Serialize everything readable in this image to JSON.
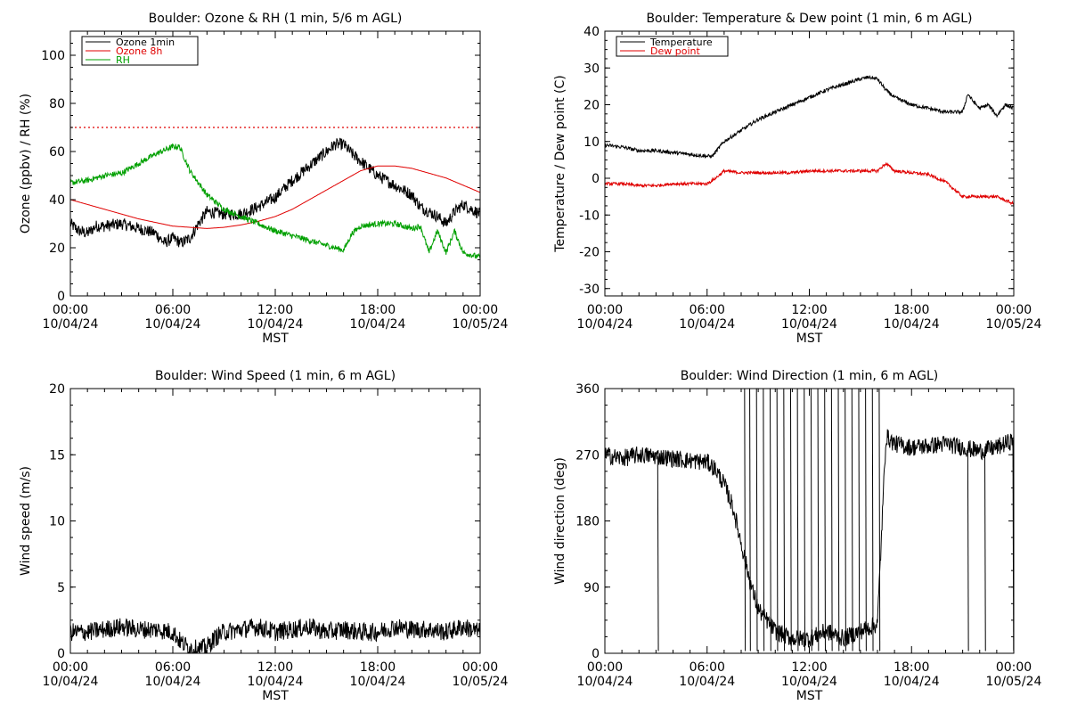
{
  "chart_data": [
    {
      "type": "line",
      "title": "Boulder: Ozone & RH (1 min, 5/6 m AGL)",
      "ylabel": "Ozone (ppbv) / RH (%)",
      "xlabel": "MST",
      "x_ticks": [
        "00:00",
        "06:00",
        "12:00",
        "18:00",
        "00:00"
      ],
      "x_tick_dates": [
        "10/04/24",
        "10/04/24",
        "10/04/24",
        "10/04/24",
        "10/05/24"
      ],
      "xlim_hours": [
        0,
        24
      ],
      "ylim": [
        0,
        110
      ],
      "y_ticks": [
        0,
        20,
        40,
        60,
        80,
        100
      ],
      "legend_position": "top-left",
      "reference_line": {
        "y": 70,
        "color": "#e00000",
        "style": "dotted"
      },
      "series": [
        {
          "name": "Ozone 1min",
          "color": "#000000",
          "noise": 2.5,
          "x": [
            0,
            0.5,
            1,
            1.5,
            2,
            3,
            4,
            5,
            5.5,
            6,
            6.5,
            7,
            7.5,
            8,
            9,
            10,
            11,
            12,
            13,
            14,
            15,
            15.5,
            16,
            16.5,
            17,
            17.5,
            18,
            19,
            20,
            20.5,
            21,
            21.5,
            22,
            22.5,
            23,
            23.5,
            24
          ],
          "y": [
            30,
            27,
            26,
            29,
            29,
            30,
            28,
            26,
            22,
            24,
            22,
            24,
            30,
            35,
            34,
            34,
            37,
            41,
            48,
            54,
            60,
            63,
            63,
            59,
            56,
            53,
            50,
            46,
            42,
            37,
            35,
            33,
            30,
            35,
            38,
            36,
            34
          ]
        },
        {
          "name": "Ozone 8h",
          "color": "#e00000",
          "noise": 0,
          "x": [
            0,
            2,
            4,
            6,
            7,
            8,
            9,
            10,
            11,
            12,
            13,
            14,
            15,
            16,
            17,
            18,
            19,
            20,
            21,
            22,
            23,
            24
          ],
          "y": [
            40,
            36,
            32,
            29,
            28.5,
            28,
            28.5,
            29.5,
            31,
            33,
            36,
            40,
            44,
            48,
            52,
            54,
            54,
            53,
            51,
            49,
            46,
            43
          ]
        },
        {
          "name": "RH",
          "color": "#00a000",
          "noise": 1.2,
          "x": [
            0,
            1,
            2,
            3,
            4,
            5,
            6,
            6.4,
            7,
            8,
            9,
            10,
            11,
            12,
            13,
            14,
            15,
            16,
            16.5,
            17,
            18,
            19,
            20,
            20.5,
            21,
            21.5,
            22,
            22.5,
            23,
            23.5,
            24
          ],
          "y": [
            47,
            48,
            50,
            51,
            55,
            59,
            62,
            62,
            52,
            42,
            36,
            33,
            30,
            27,
            25,
            23,
            21,
            19,
            26,
            29,
            30,
            30,
            28,
            29,
            18,
            27,
            18,
            27,
            18,
            17,
            16
          ]
        }
      ]
    },
    {
      "type": "line",
      "title": "Boulder: Temperature & Dew point (1 min, 6 m AGL)",
      "ylabel": "Temperature / Dew point (C)",
      "xlabel": "MST",
      "x_ticks": [
        "00:00",
        "06:00",
        "12:00",
        "18:00",
        "00:00"
      ],
      "x_tick_dates": [
        "10/04/24",
        "10/04/24",
        "10/04/24",
        "10/04/24",
        "10/05/24"
      ],
      "xlim_hours": [
        0,
        24
      ],
      "ylim": [
        -32,
        40
      ],
      "y_ticks": [
        -30,
        -20,
        -10,
        0,
        10,
        20,
        30,
        40
      ],
      "legend_position": "top-left",
      "series": [
        {
          "name": "Temperature",
          "color": "#000000",
          "noise": 0.5,
          "x": [
            0,
            1,
            2,
            3,
            4,
            5,
            6,
            6.3,
            7,
            8,
            9,
            10,
            11,
            12,
            13,
            14,
            15,
            15.5,
            16,
            16.5,
            17,
            18,
            19,
            20,
            21,
            21.3,
            21.6,
            22,
            22.5,
            23,
            23.5,
            24
          ],
          "y": [
            9,
            8.5,
            7.5,
            7.5,
            7,
            6.5,
            6,
            6,
            10,
            13,
            16,
            18,
            20,
            22,
            24,
            25.5,
            27,
            27.5,
            27,
            24,
            22,
            20,
            19,
            18,
            18,
            23,
            21,
            19,
            20,
            17,
            20,
            19
          ]
        },
        {
          "name": "Dew point",
          "color": "#e00000",
          "noise": 0.4,
          "x": [
            0,
            1,
            2,
            3,
            4,
            5,
            6,
            6.5,
            7,
            8,
            9,
            10,
            11,
            12,
            13,
            14,
            15,
            16,
            16.5,
            17,
            18,
            19,
            20,
            20.5,
            21,
            21.5,
            22,
            22.5,
            23,
            23.5,
            24
          ],
          "y": [
            -1.5,
            -1.5,
            -2,
            -2,
            -1.5,
            -1.5,
            -1.5,
            0,
            2,
            1.5,
            1.5,
            1.5,
            1.5,
            2,
            2,
            2,
            2,
            2,
            4,
            2,
            1.5,
            1,
            -1,
            -3,
            -5,
            -5,
            -5,
            -5,
            -5,
            -6,
            -7
          ]
        }
      ]
    },
    {
      "type": "line",
      "title": "Boulder: Wind Speed (1 min, 6 m AGL)",
      "ylabel": "Wind speed (m/s)",
      "xlabel": "MST",
      "x_ticks": [
        "00:00",
        "06:00",
        "12:00",
        "18:00",
        "00:00"
      ],
      "x_tick_dates": [
        "10/04/24",
        "10/04/24",
        "10/04/24",
        "10/04/24",
        "10/05/24"
      ],
      "xlim_hours": [
        0,
        24
      ],
      "ylim": [
        0,
        20
      ],
      "y_ticks": [
        0,
        5,
        10,
        15,
        20
      ],
      "series": [
        {
          "name": "",
          "color": "#000000",
          "noise": 0.7,
          "x": [
            0,
            1,
            2,
            3,
            4,
            5,
            6,
            6.5,
            7,
            7.5,
            8,
            8.5,
            9,
            10,
            11,
            12,
            13,
            14,
            15,
            16,
            17,
            18,
            19,
            20,
            21,
            22,
            23,
            24
          ],
          "y": [
            1.6,
            1.6,
            1.8,
            2,
            1.8,
            1.8,
            1.6,
            0.8,
            0.4,
            0.3,
            0.5,
            1.2,
            1.6,
            1.8,
            2,
            1.6,
            1.8,
            2,
            1.6,
            1.8,
            1.6,
            1.6,
            2,
            1.8,
            1.8,
            1.6,
            2,
            1.6
          ]
        }
      ]
    },
    {
      "type": "line",
      "title": "Boulder: Wind Direction (1 min, 6 m AGL)",
      "ylabel": "Wind direction (deg)",
      "xlabel": "MST",
      "x_ticks": [
        "00:00",
        "06:00",
        "12:00",
        "18:00",
        "00:00"
      ],
      "x_tick_dates": [
        "10/04/24",
        "10/04/24",
        "10/04/24",
        "10/04/24",
        "10/05/24"
      ],
      "xlim_hours": [
        0,
        24
      ],
      "ylim": [
        0,
        360
      ],
      "y_ticks": [
        0,
        90,
        180,
        270,
        360
      ],
      "series": [
        {
          "name": "",
          "color": "#000000",
          "noise": 12,
          "x": [
            0,
            1,
            2,
            3,
            4,
            5,
            6,
            6.5,
            7,
            7.5,
            8,
            8.3,
            8.6,
            9,
            10,
            11,
            12,
            13,
            14,
            15,
            16,
            16.5,
            17,
            18,
            19,
            20,
            21,
            22,
            23,
            24
          ],
          "y": [
            270,
            265,
            270,
            268,
            265,
            262,
            260,
            250,
            230,
            200,
            150,
            120,
            90,
            60,
            30,
            20,
            20,
            30,
            20,
            30,
            40,
            295,
            285,
            280,
            282,
            285,
            280,
            275,
            280,
            290
          ]
        }
      ],
      "wrap_spikes_hours": [
        3.1,
        8.2,
        8.5,
        8.9,
        9.3,
        9.7,
        10.1,
        10.5,
        10.9,
        11.3,
        11.7,
        12.1,
        12.5,
        12.9,
        13.3,
        13.7,
        14.1,
        14.5,
        14.9,
        15.3,
        15.7,
        16.1,
        21.3,
        22.3,
        23.95
      ]
    }
  ]
}
